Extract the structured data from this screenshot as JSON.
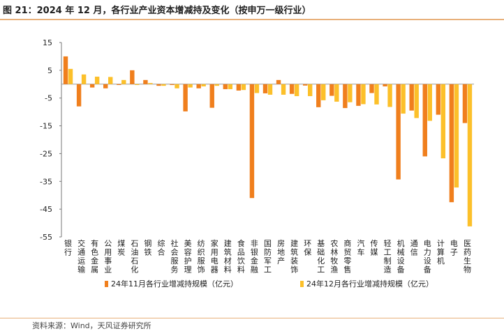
{
  "header": {
    "title": "图 21：2024 年 12 月，各行业产业资本增减持及变化（按申万一级行业）"
  },
  "footer": {
    "source": "资料来源：Wind，天风证券研究所"
  },
  "colors": {
    "series1": "#F07F1D",
    "series2": "#FCC02A",
    "accent_rule": "#E8B07A"
  },
  "chart_data": {
    "type": "bar",
    "title": "",
    "xlabel": "",
    "ylabel": "",
    "ylim": [
      -55,
      15
    ],
    "yticks": [
      15,
      5,
      -5,
      -15,
      -25,
      -35,
      -45,
      -55
    ],
    "grid": false,
    "legend_position": "bottom",
    "categories": [
      "银行",
      "交通运输",
      "有色金属",
      "公用事业",
      "煤炭",
      "石油石化",
      "钢铁",
      "综合",
      "社会服务",
      "美容护理",
      "纺织服饰",
      "家用电器",
      "建筑材料",
      "食品饮料",
      "非银金融",
      "国防军工",
      "房地产",
      "建筑装饰",
      "环保",
      "基础化工",
      "农林牧渔",
      "商贸零售",
      "汽车",
      "传媒",
      "轻工制造",
      "机械设备",
      "通信",
      "电力设备",
      "计算机",
      "电子",
      "医药生物"
    ],
    "series": [
      {
        "name": "24年11月各行业增减持规模（亿元）",
        "values": [
          10,
          -8,
          -1.2,
          -1.5,
          -0.3,
          5,
          1.5,
          -0.6,
          -0.3,
          -9.8,
          -1.5,
          -8.5,
          -1.8,
          -2.3,
          -41,
          -3.3,
          1.5,
          -3.5,
          -0.5,
          -8.3,
          -4.2,
          -8.6,
          -7.8,
          -3.2,
          -0.8,
          -34.3,
          -9.5,
          -26,
          -11,
          -42.5,
          -14
        ],
        "color": "#F07F1D"
      },
      {
        "name": "24年12月各行业增减持规模（亿元）",
        "values": [
          5.5,
          3.5,
          2.7,
          2.6,
          1.5,
          -0.3,
          0.4,
          -0.6,
          -1.5,
          -1.2,
          -0.8,
          -0.6,
          -1.8,
          -2.1,
          -3.2,
          -3.8,
          -3.8,
          -4.3,
          -4.3,
          -5.8,
          -6.3,
          -6.5,
          -7.2,
          -7.3,
          -8.2,
          -10.6,
          -12.2,
          -13.2,
          -26.7,
          -37.2,
          -51.2
        ],
        "color": "#FCC02A"
      }
    ]
  }
}
